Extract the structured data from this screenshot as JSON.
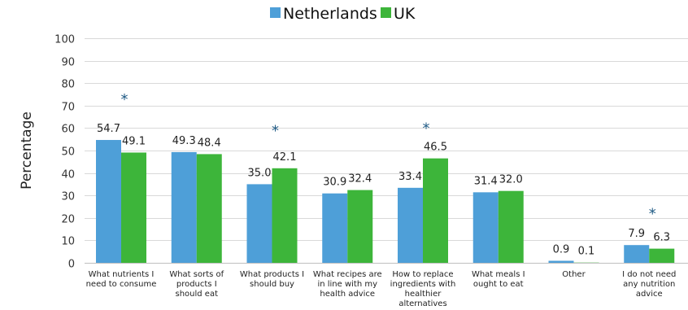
{
  "chart_data": {
    "type": "bar",
    "title": "",
    "xlabel": "",
    "ylabel": "Percentage",
    "ylim": [
      0,
      100
    ],
    "yticks": [
      0,
      10,
      20,
      30,
      40,
      50,
      60,
      70,
      80,
      90,
      100
    ],
    "grid": true,
    "legend_position": "top",
    "categories": [
      [
        "What nutrients I",
        "need to consume"
      ],
      [
        "What sorts of",
        "products I",
        "should eat"
      ],
      [
        "What products I",
        "should buy"
      ],
      [
        "What recipes are",
        "in line with my",
        "health advice"
      ],
      [
        "How to replace",
        "ingredients with",
        "healthier",
        "alternatives"
      ],
      [
        "What meals I",
        "ought to eat"
      ],
      [
        "Other"
      ],
      [
        "I do not need",
        "any nutrition",
        "advice"
      ]
    ],
    "series": [
      {
        "name": "Netherlands",
        "color": "#4e9fd8",
        "values": [
          54.7,
          49.3,
          35.0,
          30.9,
          33.4,
          31.4,
          0.9,
          7.9
        ],
        "labels": [
          "54.7",
          "49.3",
          "35.0",
          "30.9",
          "33.4",
          "31.4",
          "0.9",
          "7.9"
        ]
      },
      {
        "name": "UK",
        "color": "#3db53a",
        "values": [
          49.1,
          48.4,
          42.1,
          32.4,
          46.5,
          32.0,
          0.1,
          6.3
        ],
        "labels": [
          "49.1",
          "48.4",
          "42.1",
          "32.4",
          "46.5",
          "32.0",
          "0.1",
          "6.3"
        ]
      }
    ],
    "annotations": [
      {
        "category_index": 0,
        "text": "*",
        "y": 74
      },
      {
        "category_index": 2,
        "text": "*",
        "y": 60
      },
      {
        "category_index": 4,
        "text": "*",
        "y": 61
      },
      {
        "category_index": 7,
        "text": "*",
        "y": 23
      }
    ]
  }
}
